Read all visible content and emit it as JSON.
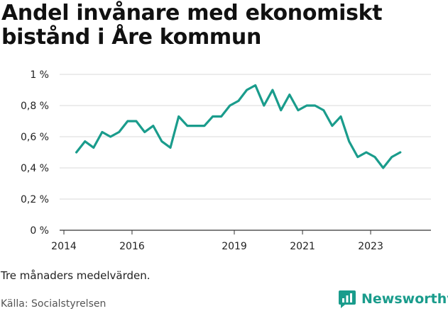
{
  "title": "Andel invånare med ekonomiskt bistånd i Åre kommun",
  "note": "Tre månaders medelvärden.",
  "source": "Källa: Socialstyrelsen",
  "brand": {
    "name": "Newsworthy",
    "icon": "newsworthy-logo-icon"
  },
  "colors": {
    "line": "#1a9c8c",
    "grid": "#d9d9d9",
    "axis": "#333333"
  },
  "chart_data": {
    "type": "line",
    "title": "Andel invånare med ekonomiskt bistånd i Åre kommun",
    "xlabel": "",
    "ylabel": "",
    "x_ticks": [
      "2014",
      "2016",
      "2019",
      "2021",
      "2023"
    ],
    "x_tick_dates": [
      "2014-01-01",
      "2016-01-01",
      "2019-01-01",
      "2021-01-01",
      "2023-01-01"
    ],
    "y_ticks": [
      "0 %",
      "0,2 %",
      "0,4 %",
      "0,6 %",
      "0,8 %",
      "1 %"
    ],
    "y_tick_values": [
      0,
      0.2,
      0.4,
      0.6,
      0.8,
      1.0
    ],
    "ylim": [
      0,
      1.0
    ],
    "grid": true,
    "series": [
      {
        "x": [
          "2014-05-15",
          "2014-08-15",
          "2014-11-15",
          "2015-02-15",
          "2015-05-15",
          "2015-08-15",
          "2015-11-15",
          "2016-02-15",
          "2016-05-15",
          "2016-08-15",
          "2016-11-15",
          "2017-02-15",
          "2017-05-15",
          "2017-08-15",
          "2017-11-15",
          "2018-02-15",
          "2018-05-15",
          "2018-08-15",
          "2018-11-15",
          "2019-02-15",
          "2019-05-15",
          "2019-08-15",
          "2019-11-15",
          "2020-02-15",
          "2020-05-15",
          "2020-08-15",
          "2020-11-15",
          "2021-02-15",
          "2021-05-15",
          "2021-08-15",
          "2021-11-15",
          "2022-02-15",
          "2022-05-15",
          "2022-08-15",
          "2022-11-15",
          "2023-02-15",
          "2023-05-15",
          "2023-08-15",
          "2023-11-15"
        ],
        "values": [
          0.5,
          0.57,
          0.53,
          0.63,
          0.6,
          0.63,
          0.7,
          0.7,
          0.63,
          0.67,
          0.57,
          0.53,
          0.73,
          0.67,
          0.67,
          0.67,
          0.73,
          0.73,
          0.8,
          0.83,
          0.9,
          0.93,
          0.8,
          0.9,
          0.77,
          0.87,
          0.77,
          0.8,
          0.8,
          0.77,
          0.67,
          0.73,
          0.57,
          0.47,
          0.5,
          0.47,
          0.4,
          0.47,
          0.5
        ]
      }
    ]
  }
}
